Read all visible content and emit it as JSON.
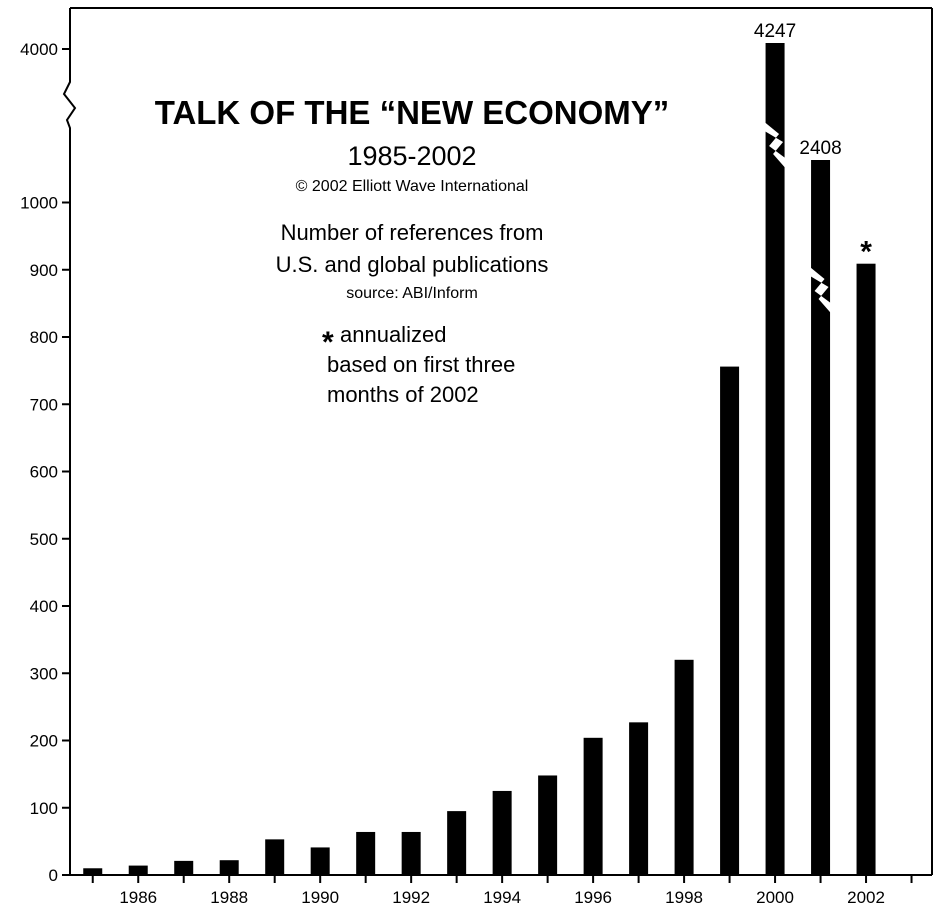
{
  "chart_data": {
    "type": "bar",
    "title": "TALK OF THE “NEW ECONOMY”",
    "subtitle": "1985-2002",
    "copyright": "© 2002 Elliott Wave International",
    "description_lines": [
      "Number of references from",
      "U.S. and global publications"
    ],
    "source": "source: ABI/Inform",
    "note_marker": "*",
    "note_lines": [
      "annualized",
      "based on first three",
      "months of 2002"
    ],
    "x": [
      1985,
      1986,
      1987,
      1988,
      1989,
      1990,
      1991,
      1992,
      1993,
      1994,
      1995,
      1996,
      1997,
      1998,
      1999,
      2000,
      2001,
      2002
    ],
    "values": [
      10,
      14,
      21,
      22,
      53,
      41,
      64,
      64,
      95,
      125,
      148,
      204,
      227,
      320,
      756,
      4247,
      2408,
      909
    ],
    "value_labels": [
      {
        "x": 2000,
        "text": "4247"
      },
      {
        "x": 2001,
        "text": "2408"
      },
      {
        "x": 2002,
        "text": "*"
      }
    ],
    "x_tick_labels": [
      "1986",
      "1988",
      "1990",
      "1992",
      "1994",
      "1996",
      "1998",
      "2000",
      "2002"
    ],
    "y_tick_labels": [
      "0",
      "100",
      "200",
      "300",
      "400",
      "500",
      "600",
      "700",
      "800",
      "900",
      "1000",
      "4000"
    ],
    "ylim": [
      0,
      1000
    ],
    "y_axis_break": "between 1000 and 4000",
    "bar_color": "#000000",
    "grid": false
  }
}
